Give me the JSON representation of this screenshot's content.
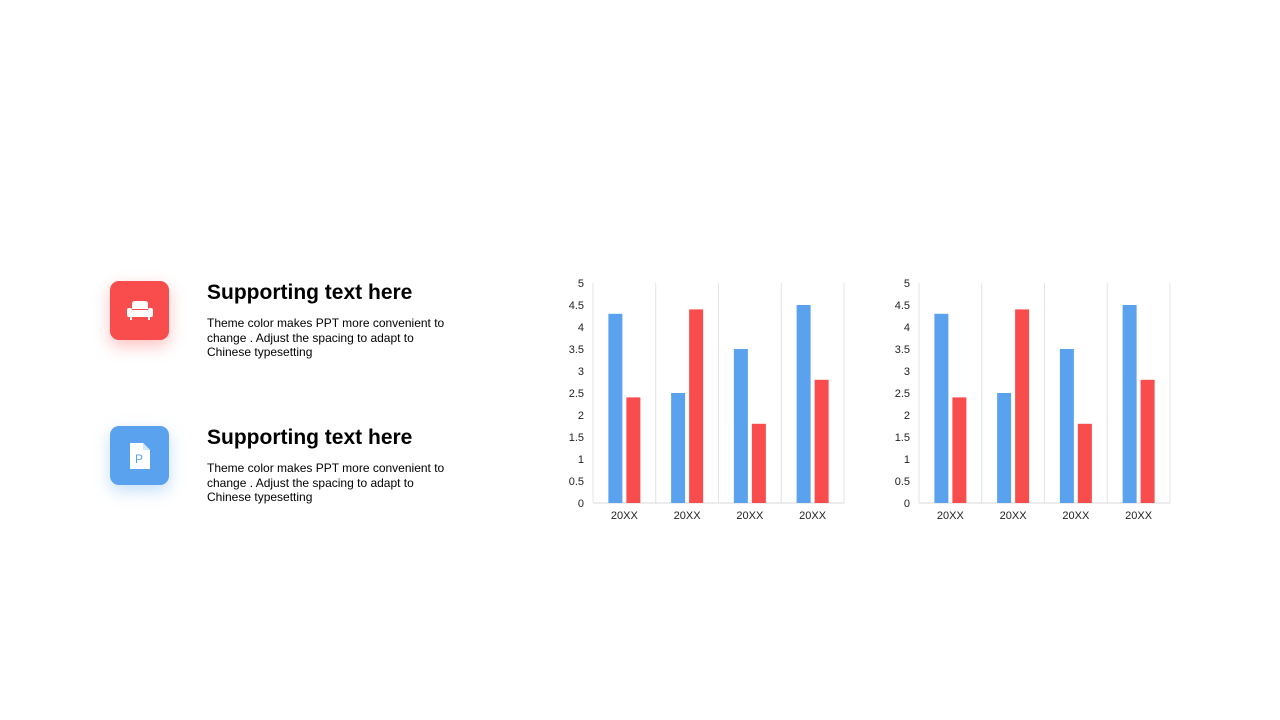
{
  "features": [
    {
      "title": "Supporting text here",
      "desc": "Theme  color makes PPT more convenient to change . Adjust the spacing to adapt to Chinese typesetting",
      "icon": "sofa-icon",
      "color": "#f94d4d"
    },
    {
      "title": "Supporting text here",
      "desc": "Theme  color makes PPT more convenient to change . Adjust the spacing to adapt to Chinese typesetting",
      "icon": "document-p-icon",
      "color": "#5aa2ee"
    }
  ],
  "chart_data": [
    {
      "type": "bar",
      "categories": [
        "20XX",
        "20XX",
        "20XX",
        "20XX"
      ],
      "series": [
        {
          "values": [
            4.3,
            2.5,
            3.5,
            4.5
          ],
          "color": "#5aa2ee"
        },
        {
          "values": [
            2.4,
            4.4,
            1.8,
            2.8
          ],
          "color": "#f94d4d"
        }
      ],
      "ylim": [
        0,
        5
      ],
      "yticks": [
        "0",
        "0.5",
        "1",
        "1.5",
        "2",
        "2.5",
        "3",
        "3.5",
        "4",
        "4.5",
        "5"
      ],
      "grid": "vertical category separators"
    },
    {
      "type": "bar",
      "categories": [
        "20XX",
        "20XX",
        "20XX",
        "20XX"
      ],
      "series": [
        {
          "values": [
            4.3,
            2.5,
            3.5,
            4.5
          ],
          "color": "#5aa2ee"
        },
        {
          "values": [
            2.4,
            4.4,
            1.8,
            2.8
          ],
          "color": "#f94d4d"
        }
      ],
      "ylim": [
        0,
        5
      ],
      "yticks": [
        "0",
        "0.5",
        "1",
        "1.5",
        "2",
        "2.5",
        "3",
        "3.5",
        "4",
        "4.5",
        "5"
      ],
      "grid": "vertical category separators"
    }
  ]
}
